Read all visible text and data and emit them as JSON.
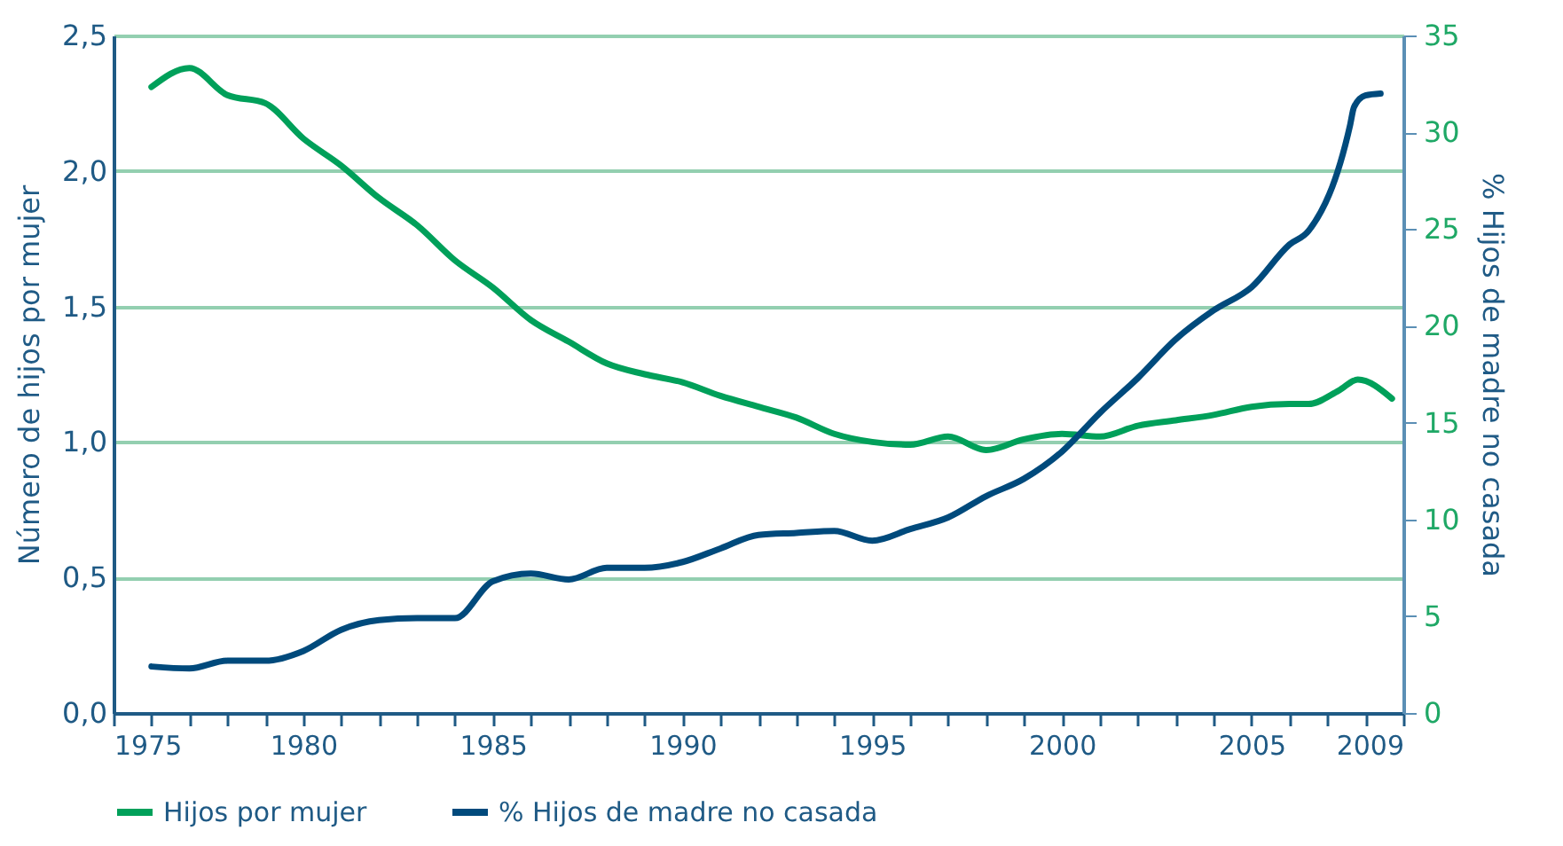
{
  "chart_data": {
    "type": "line",
    "xlabel": null,
    "ylabel": "Número de hijos por mujer",
    "y2label": "% Hijos de madre no casada",
    "xlim": [
      1975,
      2009
    ],
    "xticks": [
      1975,
      {
        "value": 1976,
        "label": null
      },
      {
        "value": 1977,
        "label": null
      },
      {
        "value": 1978,
        "label": null
      },
      {
        "value": 1979,
        "label": null
      },
      1980,
      {
        "value": 1981,
        "label": null
      },
      {
        "value": 1982,
        "label": null
      },
      {
        "value": 1983,
        "label": null
      },
      {
        "value": 1984,
        "label": null
      },
      1985,
      {
        "value": 1986,
        "label": null
      },
      {
        "value": 1987,
        "label": null
      },
      {
        "value": 1988,
        "label": null
      },
      {
        "value": 1989,
        "label": null
      },
      1990,
      {
        "value": 1991,
        "label": null
      },
      {
        "value": 1992,
        "label": null
      },
      {
        "value": 1993,
        "label": null
      },
      {
        "value": 1994,
        "label": null
      },
      1995,
      {
        "value": 1996,
        "label": null
      },
      {
        "value": 1997,
        "label": null
      },
      {
        "value": 1998,
        "label": null
      },
      {
        "value": 1999,
        "label": null
      },
      2000,
      {
        "value": 2001,
        "label": null
      },
      {
        "value": 2002,
        "label": null
      },
      {
        "value": 2003,
        "label": null
      },
      {
        "value": 2004,
        "label": null
      },
      2005,
      {
        "value": 2006,
        "label": null
      },
      {
        "value": 2007,
        "label": null
      },
      {
        "value": 2008,
        "label": null
      },
      2009
    ],
    "ylim": [
      0,
      2.5
    ],
    "yticks": [
      {
        "value": 0,
        "label": "0,0"
      },
      {
        "value": 0.5,
        "label": "0,5"
      },
      {
        "value": 1,
        "label": "1,0"
      },
      {
        "value": 1.5,
        "label": "1,5"
      },
      {
        "value": 2,
        "label": "2,0"
      },
      {
        "value": 2.5,
        "label": "2,5"
      }
    ],
    "y2lim": [
      0,
      35
    ],
    "y2ticks": [
      0,
      5,
      10,
      15,
      20,
      25,
      30,
      35
    ],
    "grid": "y",
    "legend": "bottom",
    "line_style": "solid",
    "series": [
      {
        "name": "Hijos por mujer",
        "color": "#00a05a",
        "x": [
          1976,
          1977,
          1978,
          1979,
          1980,
          1981,
          1982,
          1983,
          1984,
          1985,
          1986,
          1987,
          1988,
          1989,
          1990,
          1991,
          1992,
          1993,
          1994,
          1995,
          1996,
          1997,
          1998,
          1999,
          2000,
          2001,
          2002,
          2003,
          2004,
          2005,
          2006,
          2006.5,
          2007.3,
          2007.8,
          2008.7
        ],
        "values": [
          2.31,
          2.38,
          2.28,
          2.25,
          2.12,
          2.02,
          1.9,
          1.8,
          1.67,
          1.57,
          1.45,
          1.37,
          1.29,
          1.25,
          1.22,
          1.17,
          1.13,
          1.09,
          1.03,
          1.0,
          0.99,
          1.02,
          0.97,
          1.01,
          1.03,
          1.02,
          1.06,
          1.08,
          1.1,
          1.13,
          1.14,
          1.14,
          1.19,
          1.23,
          1.16
        ]
      },
      {
        "name": "% Hijos de madre no casada",
        "color": "#004a7c",
        "axis": "y2",
        "x": [
          1976,
          1977,
          1978,
          1979,
          1980,
          1981,
          1982,
          1983,
          1984,
          1985,
          1986,
          1987,
          1988,
          1989,
          1990,
          1991,
          1992,
          1993,
          1994,
          1995,
          1996,
          1997,
          1998,
          1999,
          2000,
          2001,
          2002,
          2003,
          2004,
          2005,
          2006,
          2006.5,
          2007.6,
          2007.7,
          2008,
          2008.4
        ],
        "values": [
          2.4,
          2.3,
          2.7,
          2.7,
          3.2,
          4.3,
          4.8,
          4.9,
          4.9,
          6.8,
          7.2,
          6.9,
          7.5,
          7.5,
          7.8,
          8.5,
          9.2,
          9.3,
          9.4,
          8.9,
          9.5,
          10.1,
          11.2,
          12.1,
          13.5,
          15.5,
          17.3,
          19.3,
          20.8,
          22.0,
          24.2,
          24.9,
          30.4,
          31.3,
          31.9,
          32.0
        ]
      }
    ]
  }
}
